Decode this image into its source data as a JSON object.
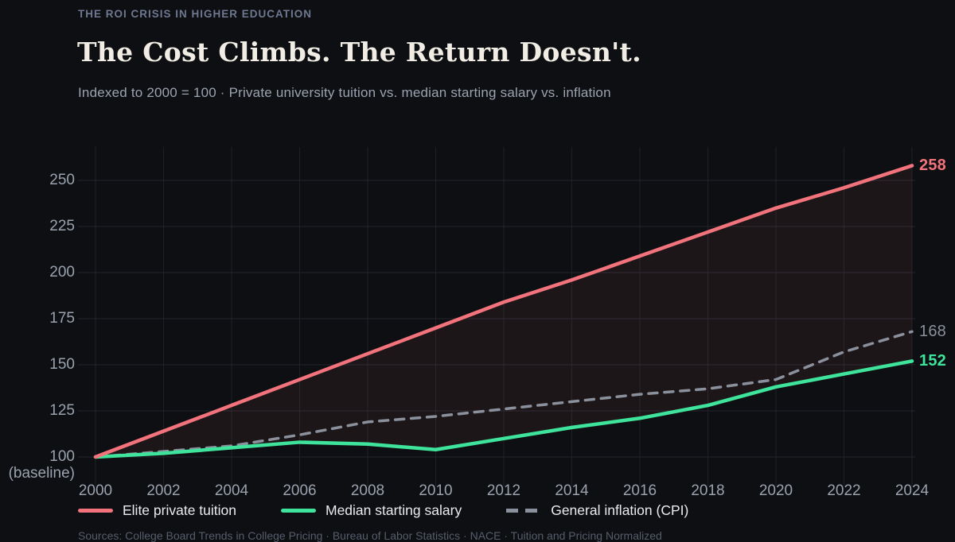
{
  "header": {
    "kicker": "THE ROI CRISIS IN HIGHER EDUCATION",
    "title": "The Cost Climbs. The Return Doesn't.",
    "subtitle": "Indexed to 2000 = 100  ·  Private university tuition vs. median starting salary vs. inflation"
  },
  "colors": {
    "background": "#0e0f13",
    "tuition": "#f2737c",
    "salary": "#3ee49b",
    "inflation": "#8a909c",
    "grid_h": "#24262d",
    "grid_v": "#1e2026",
    "axis_text": "#9aa2ae",
    "fill_between": "rgba(242,115,124,0.065)"
  },
  "chart_data": {
    "type": "line",
    "title": "The Cost Climbs. The Return Doesn't.",
    "subtitle": "Indexed to 2000 = 100 · Private university tuition vs. median starting salary vs. inflation",
    "x": [
      2000,
      2002,
      2004,
      2006,
      2008,
      2010,
      2012,
      2014,
      2016,
      2018,
      2020,
      2022,
      2024
    ],
    "x_ticks": [
      "2000",
      "2002",
      "2004",
      "2006",
      "2008",
      "2010",
      "2012",
      "2014",
      "2016",
      "2018",
      "2020",
      "2022",
      "2024"
    ],
    "y_ticks": [
      100,
      125,
      150,
      175,
      200,
      225,
      250
    ],
    "y_baseline_note": "(baseline)",
    "ylim": [
      95,
      262
    ],
    "grid": true,
    "legend_position": "bottom",
    "series": [
      {
        "name": "General inflation (CPI)",
        "style": "dashed",
        "color": "#8a909c",
        "end_label": "168",
        "end_label_bold": false,
        "values": [
          100,
          103,
          106,
          112,
          119,
          122,
          126,
          130,
          134,
          137,
          142,
          157,
          168
        ]
      },
      {
        "name": "Median starting salary",
        "style": "solid",
        "color": "#3ee49b",
        "end_label": "152",
        "end_label_bold": true,
        "values": [
          100,
          102,
          105,
          108,
          107,
          104,
          110,
          116,
          121,
          128,
          138,
          145,
          152
        ]
      },
      {
        "name": "Elite private tuition",
        "style": "solid",
        "color": "#f2737c",
        "end_label": "258",
        "end_label_bold": true,
        "values": [
          100,
          114,
          128,
          142,
          156,
          170,
          184,
          196,
          209,
          222,
          235,
          246,
          258
        ]
      }
    ],
    "legend_order": [
      "Elite private tuition",
      "Median starting salary",
      "General inflation (CPI)"
    ]
  },
  "footer": {
    "source": "Sources: College Board Trends in College Pricing · Bureau of Labor Statistics · NACE · Tuition and Pricing Normalized"
  }
}
